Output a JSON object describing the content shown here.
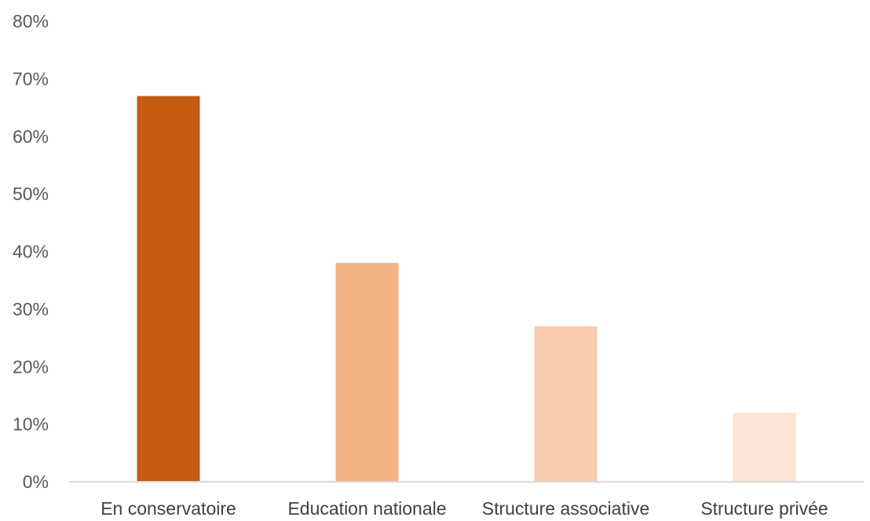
{
  "chart_data": {
    "type": "bar",
    "title": "",
    "xlabel": "",
    "ylabel": "",
    "categories": [
      "En conservatoire",
      "Education nationale",
      "Structure associative",
      "Structure privée"
    ],
    "values": [
      0.67,
      0.38,
      0.27,
      0.12
    ],
    "colors": [
      "#c55a11",
      "#f4b183",
      "#f8cbad",
      "#fbe5d6"
    ],
    "ylim": [
      0,
      0.8
    ],
    "yticks": [
      0,
      0.1,
      0.2,
      0.3,
      0.4,
      0.5,
      0.6,
      0.7,
      0.8
    ],
    "ytick_labels": [
      "0%",
      "10%",
      "20%",
      "30%",
      "40%",
      "50%",
      "60%",
      "70%",
      "80%"
    ],
    "grid": false,
    "legend": "none"
  }
}
